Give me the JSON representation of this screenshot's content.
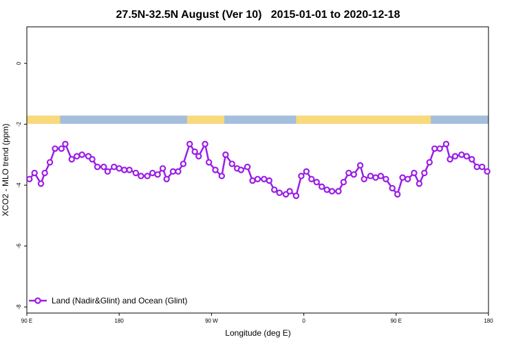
{
  "chart_data": {
    "type": "line",
    "title": "27.5N-32.5N August (Ver 10)   2015-01-01 to 2020-12-18",
    "xlabel": "Longitude (deg E)",
    "ylabel": "XCO2 - MLO trend (ppm)",
    "xlim": [
      90,
      450
    ],
    "ylim": [
      -8.2,
      1.2
    ],
    "x_ticks": [
      {
        "value": 90,
        "label": "90 E"
      },
      {
        "value": 162,
        "label": "180"
      },
      {
        "value": 234,
        "label": "90 W"
      },
      {
        "value": 306,
        "label": "0"
      },
      {
        "value": 378,
        "label": "90 E"
      },
      {
        "value": 450,
        "label": "180"
      }
    ],
    "y_ticks": [
      {
        "value": 0,
        "label": "0"
      },
      {
        "value": -2,
        "label": "-2"
      },
      {
        "value": -4,
        "label": "-4"
      },
      {
        "value": -6,
        "label": "-6"
      },
      {
        "value": -8,
        "label": "-8"
      }
    ],
    "grid": false,
    "legend_position": "bottom-left",
    "surface_band": {
      "y_center": -1.85,
      "ocean_color": "#a5bedc",
      "land_color": "#f8d97c",
      "land_segments": [
        [
          90,
          116
        ],
        [
          215,
          244
        ],
        [
          300,
          405
        ]
      ]
    },
    "series": [
      {
        "name": "Land (Nadir&Glint) and Ocean (Glint)",
        "color": "#9b1de6",
        "x": [
          92,
          96,
          101,
          104,
          108,
          112,
          117,
          120,
          125,
          129,
          133,
          138,
          141,
          145,
          150,
          153,
          158,
          162,
          166,
          170,
          175,
          179,
          184,
          188,
          192,
          196,
          199,
          204,
          208,
          212,
          217,
          221,
          224,
          229,
          232,
          237,
          242,
          245,
          250,
          254,
          257,
          262,
          266,
          270,
          275,
          279,
          283,
          287,
          292,
          295,
          300,
          304,
          308,
          312,
          316,
          320,
          324,
          328,
          333,
          337,
          341,
          345,
          350,
          353,
          358,
          362,
          366,
          370,
          375,
          379,
          383,
          387,
          392,
          396,
          400,
          404,
          408,
          412,
          417,
          420,
          424,
          429,
          433,
          437,
          441,
          445,
          449
        ],
        "y": [
          -3.8,
          -3.6,
          -3.95,
          -3.6,
          -3.25,
          -2.8,
          -2.8,
          -2.65,
          -3.15,
          -3.05,
          -3.0,
          -3.05,
          -3.15,
          -3.4,
          -3.4,
          -3.55,
          -3.4,
          -3.45,
          -3.5,
          -3.5,
          -3.6,
          -3.7,
          -3.7,
          -3.6,
          -3.65,
          -3.45,
          -3.8,
          -3.55,
          -3.55,
          -3.3,
          -2.65,
          -2.9,
          -3.05,
          -2.65,
          -3.25,
          -3.5,
          -3.7,
          -3.0,
          -3.3,
          -3.45,
          -3.5,
          -3.4,
          -3.85,
          -3.8,
          -3.8,
          -3.85,
          -4.15,
          -4.25,
          -4.3,
          -4.2,
          -4.35,
          -3.7,
          -3.55,
          -3.8,
          -3.9,
          -4.05,
          -4.15,
          -4.2,
          -4.2,
          -3.9,
          -3.6,
          -3.65,
          -3.35,
          -3.8,
          -3.7,
          -3.75,
          -3.7,
          -3.8,
          -4.1,
          -4.3,
          -3.75,
          -3.8,
          -3.6,
          -3.95,
          -3.6,
          -3.25,
          -2.8,
          -2.8,
          -2.65,
          -3.15,
          -3.05,
          -3.0,
          -3.05,
          -3.15,
          -3.4,
          -3.4,
          -3.55
        ]
      }
    ]
  }
}
